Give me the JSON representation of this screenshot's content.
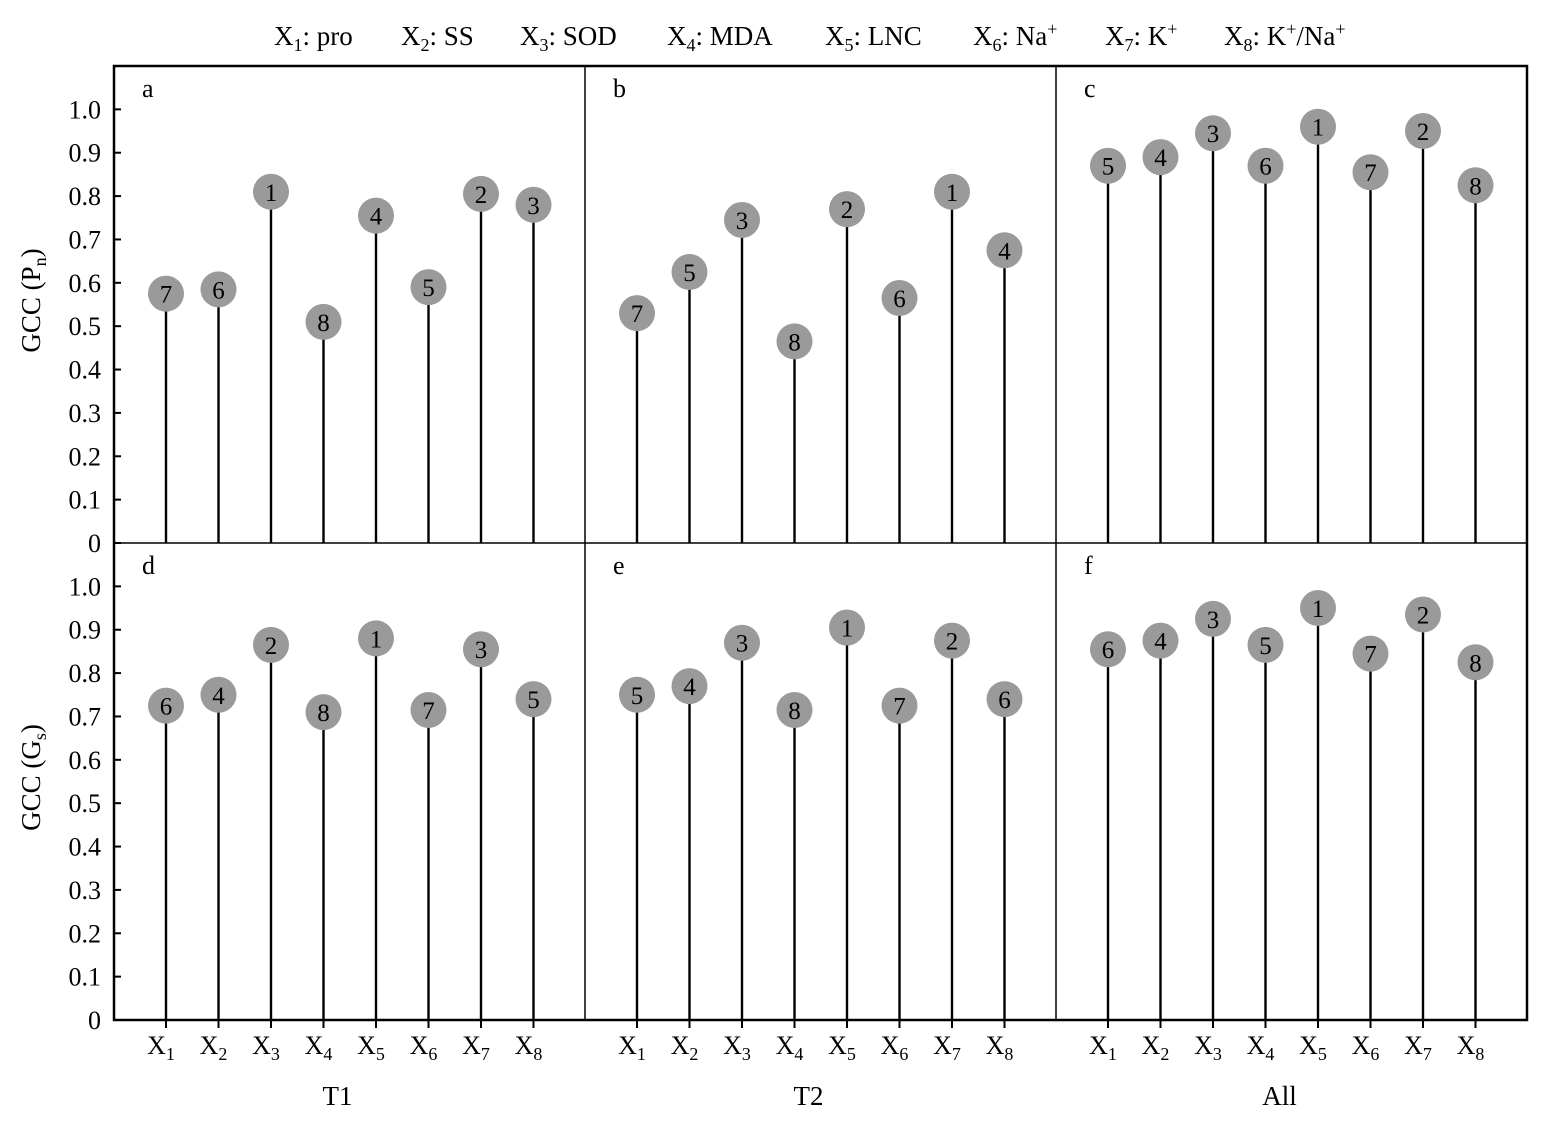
{
  "legend": [
    {
      "sym": "X",
      "sub": "1",
      "text": ": pro"
    },
    {
      "sym": "X",
      "sub": "2",
      "text": ": SS"
    },
    {
      "sym": "X",
      "sub": "3",
      "text": ": SOD"
    },
    {
      "sym": "X",
      "sub": "4",
      "text": ": MDA"
    },
    {
      "sym": "X",
      "sub": "5",
      "text": ": LNC"
    },
    {
      "sym": "X",
      "sub": "6",
      "text": ": Na",
      "sup": "+"
    },
    {
      "sym": "X",
      "sub": "7",
      "text": ": K",
      "sup": "+"
    },
    {
      "sym": "X",
      "sub": "8",
      "text": ": K",
      "sup": "+",
      "text2": "/Na",
      "sup2": "+"
    }
  ],
  "colors": {
    "marker": "#9a9a9a",
    "stem": "#000000",
    "frame": "#000000"
  },
  "x_tick_labels": [
    "X1",
    "X2",
    "X3",
    "X4",
    "X5",
    "X6",
    "X7",
    "X8"
  ],
  "group_labels": [
    "T1",
    "T2",
    "All"
  ],
  "y_axis_labels": [
    {
      "main": "GCC (P",
      "sub": "n",
      "end": ")"
    },
    {
      "main": "GCC (G",
      "sub": "s",
      "end": ")"
    }
  ],
  "y_ticks": [
    "0",
    "0.1",
    "0.2",
    "0.3",
    "0.4",
    "0.5",
    "0.6",
    "0.7",
    "0.8",
    "0.9",
    "1.0"
  ],
  "chart_data": {
    "type": "lollipop",
    "ylim": [
      0,
      1.1
    ],
    "grid": false,
    "categories": [
      "X1",
      "X2",
      "X3",
      "X4",
      "X5",
      "X6",
      "X7",
      "X8"
    ],
    "panels": [
      {
        "letter": "a",
        "row": 0,
        "col": 0,
        "values": [
          0.575,
          0.585,
          0.81,
          0.51,
          0.755,
          0.59,
          0.805,
          0.78
        ],
        "ranks": [
          "7",
          "6",
          "1",
          "8",
          "4",
          "5",
          "2",
          "3"
        ]
      },
      {
        "letter": "b",
        "row": 0,
        "col": 1,
        "values": [
          0.53,
          0.625,
          0.745,
          0.465,
          0.77,
          0.565,
          0.81,
          0.675
        ],
        "ranks": [
          "7",
          "5",
          "3",
          "8",
          "2",
          "6",
          "1",
          "4"
        ]
      },
      {
        "letter": "c",
        "row": 0,
        "col": 2,
        "values": [
          0.87,
          0.89,
          0.945,
          0.87,
          0.96,
          0.855,
          0.95,
          0.825
        ],
        "ranks": [
          "5",
          "4",
          "3",
          "6",
          "1",
          "7",
          "2",
          "8"
        ]
      },
      {
        "letter": "d",
        "row": 1,
        "col": 0,
        "values": [
          0.725,
          0.75,
          0.865,
          0.71,
          0.88,
          0.715,
          0.855,
          0.74
        ],
        "ranks": [
          "6",
          "4",
          "2",
          "8",
          "1",
          "7",
          "3",
          "5"
        ]
      },
      {
        "letter": "e",
        "row": 1,
        "col": 1,
        "values": [
          0.75,
          0.77,
          0.87,
          0.715,
          0.905,
          0.725,
          0.875,
          0.74
        ],
        "ranks": [
          "5",
          "4",
          "3",
          "8",
          "1",
          "7",
          "2",
          "6"
        ]
      },
      {
        "letter": "f",
        "row": 1,
        "col": 2,
        "values": [
          0.855,
          0.875,
          0.925,
          0.865,
          0.95,
          0.845,
          0.935,
          0.825
        ],
        "ranks": [
          "6",
          "4",
          "3",
          "5",
          "1",
          "7",
          "2",
          "8"
        ]
      }
    ]
  }
}
